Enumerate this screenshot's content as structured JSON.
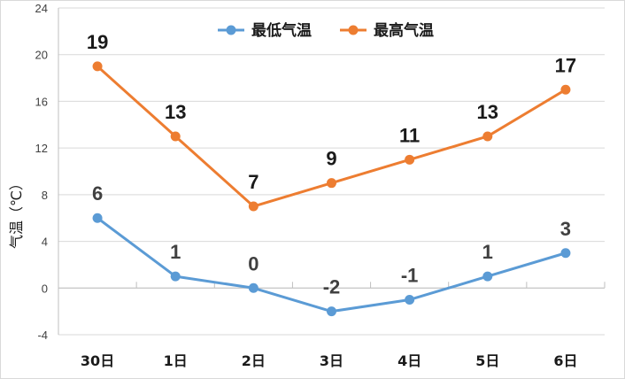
{
  "chart_data": {
    "type": "line",
    "categories": [
      "30日",
      "1日",
      "2日",
      "3日",
      "4日",
      "5日",
      "6日"
    ],
    "series": [
      {
        "name": "最低气温",
        "values": [
          6,
          1,
          0,
          -2,
          -1,
          1,
          3
        ],
        "color": "#5b9bd5"
      },
      {
        "name": "最高气温",
        "values": [
          19,
          13,
          7,
          9,
          11,
          13,
          17
        ],
        "color": "#ed7d31"
      }
    ],
    "title": "",
    "xlabel": "",
    "ylabel": "气温（℃）",
    "ylim": [
      -4,
      24
    ],
    "yticks": [
      -4,
      0,
      4,
      8,
      12,
      16,
      20,
      24
    ],
    "grid": true,
    "legend": "top-center",
    "data_label_color": "#404040"
  }
}
